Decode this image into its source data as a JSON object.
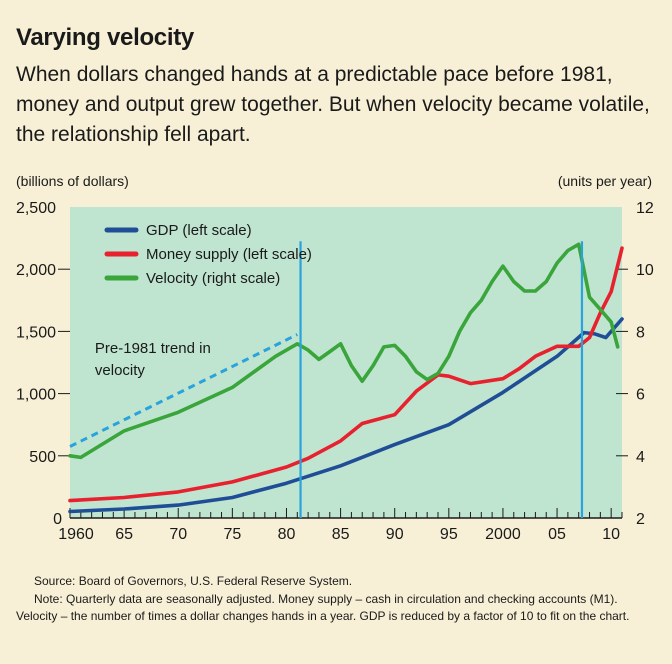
{
  "title": "Varying velocity",
  "subtitle": "When dollars changed hands at a predictable pace before 1981, money and output grew together. But when velocity became volatile, the relationship fell apart.",
  "left_unit": "(billions of dollars)",
  "right_unit": "(units per year)",
  "source": "Source: Board of Governors, U.S. Federal Reserve System.",
  "note": "Note: Quarterly data are seasonally adjusted. Money supply – cash in circulation and checking accounts (M1). Velocity – the number of times a dollar changes hands in a year. GDP is reduced by a factor of 10 to fit on the chart.",
  "chart_data": {
    "type": "line",
    "colors": {
      "gdp": "#1f4e96",
      "money": "#e8212e",
      "velocity": "#3aa53a",
      "trend": "#29a3dc",
      "marker": "#29a3dc",
      "plot_bg": "#bfe4d0"
    },
    "x_ticks": [
      "1960",
      "65",
      "70",
      "75",
      "80",
      "85",
      "90",
      "95",
      "2000",
      "05",
      "10"
    ],
    "y_left": {
      "ylim": [
        0,
        2500
      ],
      "ticks": [
        "0",
        "500",
        "1,000",
        "1,500",
        "2,000",
        "2,500"
      ]
    },
    "y_right": {
      "ylim": [
        2,
        12
      ],
      "ticks": [
        "2",
        "4",
        "6",
        "8",
        "10",
        "12"
      ]
    },
    "series": [
      {
        "name": "GDP (left scale)",
        "axis": "left",
        "color_key": "gdp",
        "x": [
          1960,
          1965,
          1970,
          1975,
          1980,
          1985,
          1990,
          1995,
          2000,
          2005,
          2007.5,
          2008.5,
          2009.5,
          2011
        ],
        "y": [
          52,
          72,
          104,
          165,
          280,
          420,
          590,
          750,
          1010,
          1300,
          1490,
          1480,
          1450,
          1600
        ]
      },
      {
        "name": "Money supply (left scale)",
        "axis": "left",
        "color_key": "money",
        "x": [
          1960,
          1965,
          1970,
          1975,
          1980,
          1982,
          1985,
          1987,
          1990,
          1992,
          1994,
          1995,
          1997,
          2000,
          2001.5,
          2003,
          2005,
          2007,
          2008,
          2009,
          2010,
          2011
        ],
        "y": [
          140,
          165,
          210,
          290,
          410,
          480,
          620,
          760,
          830,
          1020,
          1150,
          1140,
          1080,
          1120,
          1200,
          1300,
          1380,
          1380,
          1450,
          1650,
          1820,
          2170
        ]
      },
      {
        "name": "Velocity (right scale)",
        "axis": "right",
        "color_key": "velocity",
        "x": [
          1960,
          1961,
          1965,
          1970,
          1975,
          1979,
          1981,
          1982,
          1983,
          1984,
          1985,
          1986,
          1987,
          1988,
          1989,
          1990,
          1991,
          1992,
          1993,
          1994,
          1995,
          1996,
          1997,
          1998,
          1999,
          2000,
          2001,
          2002,
          2003,
          2004,
          2005,
          2006,
          2007,
          2008,
          2009,
          2010,
          2010.6
        ],
        "y": [
          4.0,
          3.95,
          4.8,
          5.4,
          6.2,
          7.2,
          7.6,
          7.4,
          7.1,
          7.35,
          7.6,
          6.9,
          6.4,
          6.9,
          7.5,
          7.55,
          7.2,
          6.7,
          6.45,
          6.65,
          7.2,
          8.0,
          8.6,
          9.0,
          9.6,
          10.1,
          9.6,
          9.3,
          9.3,
          9.6,
          10.2,
          10.6,
          10.8,
          9.1,
          8.7,
          8.3,
          7.5
        ]
      }
    ],
    "trend": {
      "label": "Pre-1981 trend in velocity",
      "axis": "right",
      "x": [
        1960,
        1981
      ],
      "y": [
        4.3,
        7.9
      ]
    },
    "markers_x": [
      1981.3,
      2007.3
    ]
  }
}
